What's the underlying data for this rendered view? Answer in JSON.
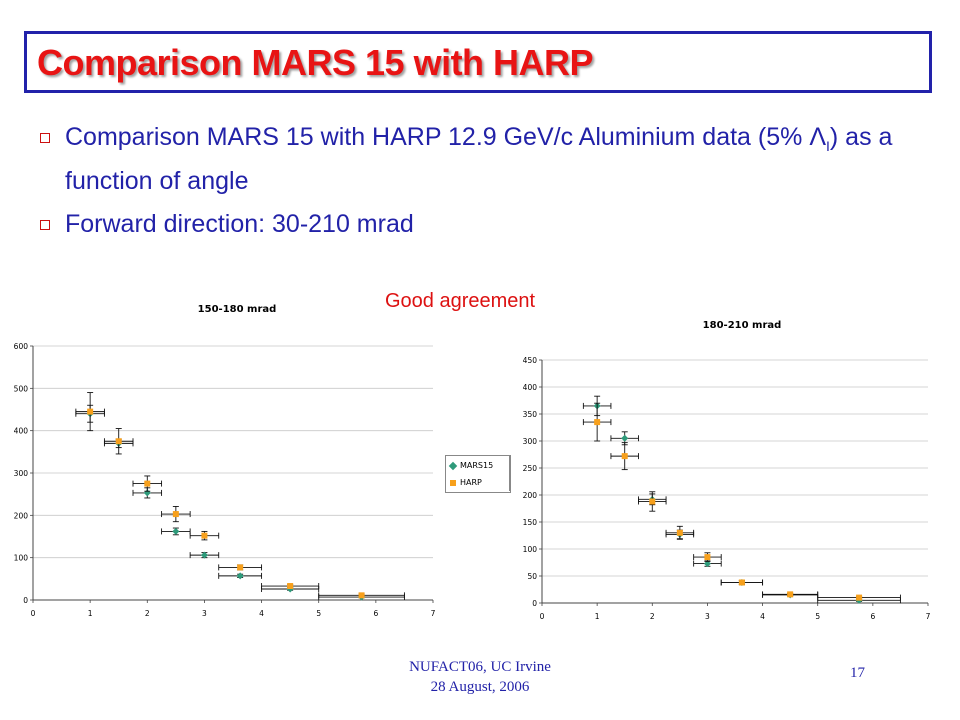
{
  "slide": {
    "title": "Comparison MARS 15 with HARP",
    "bullets": [
      {
        "text_before": "Comparison MARS 15 with HARP 12.9 GeV/c Aluminium data (5% ",
        "symbol": "Λ",
        "subscript": "I",
        "text_after": ") as a function of angle"
      },
      {
        "text": "Forward direction: 30-210 mrad"
      }
    ],
    "annotation": "Good agreement",
    "footer_line1": "NUFACT06, UC Irvine",
    "footer_line2": "28 August, 2006",
    "page_number": "17"
  },
  "legend": {
    "entries": [
      {
        "name": "MARS15",
        "color": "#2e9a7a"
      },
      {
        "name": "HARP",
        "color": "#f7a01c"
      }
    ]
  },
  "chart_data": [
    {
      "type": "scatter",
      "title": "150-180 mrad",
      "xlim": [
        0,
        7
      ],
      "ylim": [
        0,
        600
      ],
      "xticks": [
        0,
        1,
        2,
        3,
        4,
        5,
        6,
        7
      ],
      "yticks": [
        0,
        100,
        200,
        300,
        400,
        500,
        600
      ],
      "grid": true,
      "series": [
        {
          "name": "MARS15",
          "color": "#2e9a7a",
          "points": [
            {
              "x": 1.0,
              "y": 440,
              "xerr": 0.25,
              "yerr": 20
            },
            {
              "x": 1.5,
              "y": 370,
              "xerr": 0.25,
              "yerr": 10
            },
            {
              "x": 2.0,
              "y": 253,
              "xerr": 0.25,
              "yerr": 12
            },
            {
              "x": 2.5,
              "y": 162,
              "xerr": 0.25,
              "yerr": 8
            },
            {
              "x": 3.0,
              "y": 106,
              "xerr": 0.25,
              "yerr": 6
            },
            {
              "x": 3.625,
              "y": 57,
              "xerr": 0.375,
              "yerr": 4
            },
            {
              "x": 4.5,
              "y": 26,
              "xerr": 0.5,
              "yerr": 3
            },
            {
              "x": 5.75,
              "y": 7,
              "xerr": 0.75,
              "yerr": 2
            }
          ]
        },
        {
          "name": "HARP",
          "color": "#f7a01c",
          "points": [
            {
              "x": 1.0,
              "y": 445,
              "xerr": 0.25,
              "yerr": 45
            },
            {
              "x": 1.5,
              "y": 375,
              "xerr": 0.25,
              "yerr": 30
            },
            {
              "x": 2.0,
              "y": 275,
              "xerr": 0.25,
              "yerr": 18
            },
            {
              "x": 2.5,
              "y": 203,
              "xerr": 0.25,
              "yerr": 18
            },
            {
              "x": 3.0,
              "y": 152,
              "xerr": 0.25,
              "yerr": 10
            },
            {
              "x": 3.625,
              "y": 77,
              "xerr": 0.375,
              "yerr": 6
            },
            {
              "x": 4.5,
              "y": 33,
              "xerr": 0.5,
              "yerr": 4
            },
            {
              "x": 5.75,
              "y": 11,
              "xerr": 0.75,
              "yerr": 3
            }
          ]
        }
      ]
    },
    {
      "type": "scatter",
      "title": "180-210 mrad",
      "xlim": [
        0,
        7
      ],
      "ylim": [
        0,
        450
      ],
      "xticks": [
        0,
        1,
        2,
        3,
        4,
        5,
        6,
        7
      ],
      "yticks": [
        0,
        50,
        100,
        150,
        200,
        250,
        300,
        350,
        400,
        450
      ],
      "grid": true,
      "series": [
        {
          "name": "MARS15",
          "color": "#2e9a7a",
          "points": [
            {
              "x": 1.0,
              "y": 365,
              "xerr": 0.25,
              "yerr": 18
            },
            {
              "x": 1.5,
              "y": 305,
              "xerr": 0.25,
              "yerr": 12
            },
            {
              "x": 2.0,
              "y": 192,
              "xerr": 0.25,
              "yerr": 10
            },
            {
              "x": 2.5,
              "y": 127,
              "xerr": 0.25,
              "yerr": 8
            },
            {
              "x": 3.0,
              "y": 73,
              "xerr": 0.25,
              "yerr": 5
            },
            {
              "x": 3.625,
              "y": 38,
              "xerr": 0.375,
              "yerr": 3
            },
            {
              "x": 4.5,
              "y": 15,
              "xerr": 0.5,
              "yerr": 2
            },
            {
              "x": 5.75,
              "y": 5,
              "xerr": 0.75,
              "yerr": 2
            }
          ]
        },
        {
          "name": "HARP",
          "color": "#f7a01c",
          "points": [
            {
              "x": 1.0,
              "y": 335,
              "xerr": 0.25,
              "yerr": 35
            },
            {
              "x": 1.5,
              "y": 272,
              "xerr": 0.25,
              "yerr": 25
            },
            {
              "x": 2.0,
              "y": 188,
              "xerr": 0.25,
              "yerr": 18
            },
            {
              "x": 2.5,
              "y": 130,
              "xerr": 0.25,
              "yerr": 12
            },
            {
              "x": 3.0,
              "y": 85,
              "xerr": 0.25,
              "yerr": 8
            },
            {
              "x": 3.625,
              "y": 38,
              "xerr": 0.375,
              "yerr": 4
            },
            {
              "x": 4.5,
              "y": 16,
              "xerr": 0.5,
              "yerr": 2
            },
            {
              "x": 5.75,
              "y": 10,
              "xerr": 0.75,
              "yerr": 2
            }
          ]
        }
      ]
    }
  ]
}
